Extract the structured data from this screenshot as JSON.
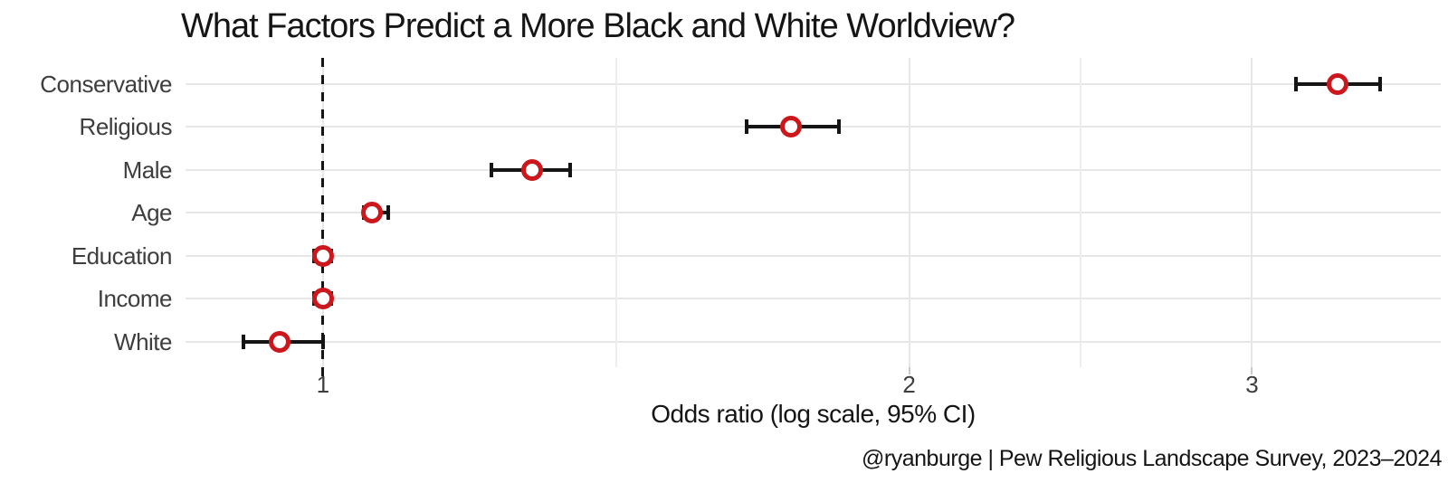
{
  "caption": "@ryanburge | Pew Religious Landscape Survey, 2023–2024",
  "colors": {
    "point": "#cc181d",
    "error_bar": "#151515",
    "reference_line": "#151515",
    "grid_major": "#e7e7e7",
    "grid_minor": "#ededed",
    "axis_text": "#3e3e3e",
    "title_text": "#151515",
    "background": "#ffffff"
  },
  "chart_data": {
    "type": "scatter",
    "subtype": "dot-whisker-odds-ratio",
    "title": "What Factors Predict a More Black and White Worldview?",
    "xlabel": "Odds ratio (log scale, 95% CI)",
    "ylabel": "",
    "x_scale": "log10",
    "xlim": [
      0.85,
      3.75
    ],
    "x_major_breaks": [
      1,
      2,
      3
    ],
    "x_minor_breaks": [
      1.4142,
      2.4495
    ],
    "reference_line_x": 1,
    "grid": "on",
    "legend": "none",
    "categories": [
      "Conservative",
      "Religious",
      "Male",
      "Age",
      "Education",
      "Income",
      "White"
    ],
    "series": [
      {
        "name": "Odds ratio (95% CI)",
        "values": [
          3.32,
          1.74,
          1.28,
          1.06,
          1.0,
          1.0,
          0.95
        ],
        "ci_low": [
          3.16,
          1.65,
          1.22,
          1.05,
          0.99,
          0.99,
          0.91
        ],
        "ci_high": [
          3.49,
          1.84,
          1.34,
          1.08,
          1.01,
          1.01,
          1.0
        ]
      }
    ]
  }
}
